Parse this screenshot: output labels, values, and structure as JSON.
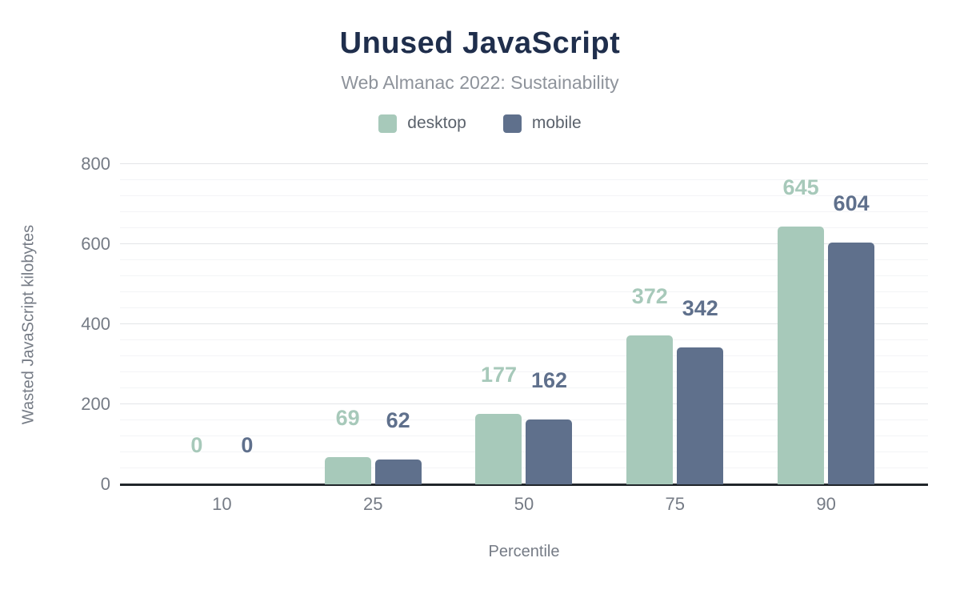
{
  "chart_data": {
    "type": "bar",
    "title": "Unused JavaScript",
    "subtitle": "Web Almanac 2022: Sustainability",
    "xlabel": "Percentile",
    "ylabel": "Wasted JavaScript kilobytes",
    "categories": [
      "10",
      "25",
      "50",
      "75",
      "90"
    ],
    "series": [
      {
        "name": "desktop",
        "color": "#a7c9ba",
        "values": [
          0,
          69,
          177,
          372,
          645
        ]
      },
      {
        "name": "mobile",
        "color": "#5f708c",
        "values": [
          0,
          62,
          162,
          342,
          604
        ]
      }
    ],
    "ylim": [
      0,
      800
    ],
    "yticks": [
      0,
      200,
      400,
      600,
      800
    ],
    "minor_grid_step": 40,
    "grid": true,
    "legend_position": "top",
    "value_labels_shown": true
  },
  "colors": {
    "title": "#1f2e4c",
    "subtitle": "#8e939b",
    "axis_text": "#757b85",
    "axis_line": "#21262b",
    "major_grid": "#e3e5e8",
    "minor_grid": "#f3f4f6",
    "background": "#ffffff"
  }
}
